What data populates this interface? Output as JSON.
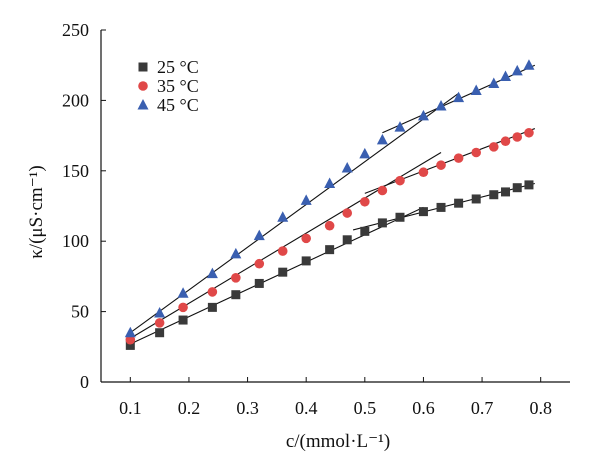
{
  "chart_data": {
    "type": "scatter",
    "xlabel": "c/(mmol·L⁻¹)",
    "ylabel": "κ/(μS·cm⁻¹)",
    "xlim": [
      0.05,
      0.85
    ],
    "ylim": [
      0,
      250
    ],
    "x_ticks": [
      "0.1",
      "0.2",
      "0.3",
      "0.4",
      "0.5",
      "0.6",
      "0.7",
      "0.8"
    ],
    "y_ticks": [
      "0",
      "50",
      "100",
      "150",
      "200",
      "250"
    ],
    "grid": false,
    "legend_position": "top-left",
    "series": [
      {
        "name": "25 °C",
        "marker": "square",
        "color": "#3a3a3a",
        "x": [
          0.1,
          0.15,
          0.19,
          0.24,
          0.28,
          0.32,
          0.36,
          0.4,
          0.44,
          0.47,
          0.5,
          0.53,
          0.56,
          0.6,
          0.63,
          0.66,
          0.69,
          0.72,
          0.74,
          0.76,
          0.78
        ],
        "y": [
          26,
          35,
          44,
          53,
          62,
          70,
          78,
          86,
          94,
          101,
          107,
          113,
          117,
          121,
          124,
          127,
          130,
          133,
          135,
          138,
          140
        ],
        "fit_lines": [
          {
            "x": [
              0.1,
              0.6
            ],
            "y": [
              27,
              124
            ]
          },
          {
            "x": [
              0.48,
              0.79
            ],
            "y": [
              108,
              141
            ]
          }
        ]
      },
      {
        "name": "35 °C",
        "marker": "circle",
        "color": "#e04848",
        "x": [
          0.1,
          0.15,
          0.19,
          0.24,
          0.28,
          0.32,
          0.36,
          0.4,
          0.44,
          0.47,
          0.5,
          0.53,
          0.56,
          0.6,
          0.63,
          0.66,
          0.69,
          0.72,
          0.74,
          0.76,
          0.78
        ],
        "y": [
          30,
          42,
          53,
          64,
          74,
          84,
          93,
          102,
          111,
          120,
          128,
          136,
          143,
          149,
          154,
          159,
          163,
          167,
          171,
          174,
          177
        ],
        "fit_lines": [
          {
            "x": [
              0.1,
              0.63
            ],
            "y": [
              31,
              163
            ]
          },
          {
            "x": [
              0.5,
              0.79
            ],
            "y": [
              134,
              180
            ]
          }
        ]
      },
      {
        "name": "45 °C",
        "marker": "triangle",
        "color": "#3a5fb0",
        "x": [
          0.1,
          0.15,
          0.19,
          0.24,
          0.28,
          0.32,
          0.36,
          0.4,
          0.44,
          0.47,
          0.5,
          0.53,
          0.56,
          0.6,
          0.63,
          0.66,
          0.69,
          0.72,
          0.74,
          0.76,
          0.78
        ],
        "y": [
          35,
          49,
          63,
          77,
          91,
          104,
          117,
          129,
          141,
          152,
          162,
          172,
          181,
          189,
          196,
          202,
          207,
          212,
          217,
          221,
          225
        ],
        "fit_lines": [
          {
            "x": [
              0.1,
              0.66
            ],
            "y": [
              35,
              205
            ]
          },
          {
            "x": [
              0.53,
              0.79
            ],
            "y": [
              177,
              225
            ]
          }
        ]
      }
    ]
  }
}
